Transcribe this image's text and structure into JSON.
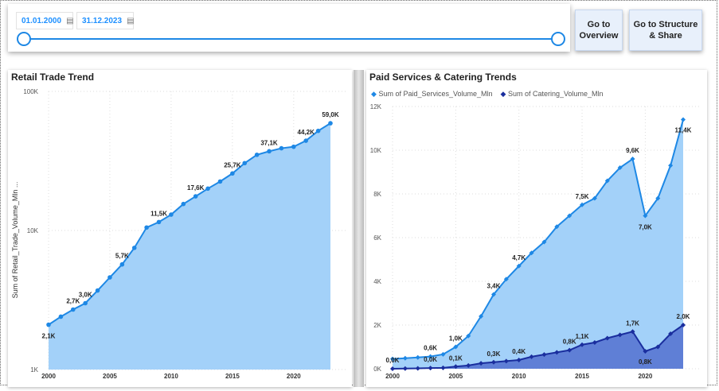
{
  "filter": {
    "start_date": "01.01.2000",
    "end_date": "31.12.2023",
    "calendar_glyph": "▤"
  },
  "buttons": {
    "overview": "Go to Overview",
    "structure": "Go to Structure & Share"
  },
  "colors": {
    "accent": "#1e88e5",
    "area_light": "#a3d1f9",
    "dark_series": "#1a2e9e",
    "dark_area": "#5f7fd6"
  },
  "chart_data": [
    {
      "type": "area",
      "title": "Retail Trade Trend",
      "ylabel": "Sum of Retail_Trade_Volume_Mln ...",
      "xlabel": "",
      "yscale": "log",
      "ylim": [
        1000,
        100000
      ],
      "y_ticks": [
        {
          "value": 1000,
          "label": "1K"
        },
        {
          "value": 10000,
          "label": "10K"
        },
        {
          "value": 100000,
          "label": "100K"
        }
      ],
      "x_ticks": [
        2000,
        2005,
        2010,
        2015,
        2020
      ],
      "x": [
        2000,
        2001,
        2002,
        2003,
        2004,
        2005,
        2006,
        2007,
        2008,
        2009,
        2010,
        2011,
        2012,
        2013,
        2014,
        2015,
        2016,
        2017,
        2018,
        2019,
        2020,
        2021,
        2022,
        2023
      ],
      "series": [
        {
          "values": [
            2100,
            2400,
            2700,
            3000,
            3700,
            4600,
            5700,
            7500,
            10500,
            11500,
            13000,
            15500,
            17600,
            20000,
            22500,
            25700,
            30500,
            35000,
            37100,
            39000,
            40000,
            44200,
            52000,
            59000
          ],
          "labels": [
            "2,1K",
            "",
            "2,7K",
            "3,0K",
            "",
            "",
            "5,7K",
            "",
            "",
            "11,5K",
            "",
            "",
            "17,6K",
            "",
            "",
            "25,7K",
            "",
            "",
            "37,1K",
            "",
            "",
            "44,2K",
            "",
            "59,0K"
          ]
        }
      ]
    },
    {
      "type": "area",
      "title": "Paid Services & Catering Trends",
      "xlabel": "",
      "ylabel": "",
      "ylim": [
        0,
        12000
      ],
      "y_ticks": [
        {
          "value": 0,
          "label": "0K"
        },
        {
          "value": 2000,
          "label": "2K"
        },
        {
          "value": 4000,
          "label": "4K"
        },
        {
          "value": 6000,
          "label": "6K"
        },
        {
          "value": 8000,
          "label": "8K"
        },
        {
          "value": 10000,
          "label": "10K"
        },
        {
          "value": 12000,
          "label": "12K"
        }
      ],
      "x_ticks": [
        2000,
        2005,
        2010,
        2015,
        2020
      ],
      "legend_position": "top-left",
      "x": [
        2000,
        2001,
        2002,
        2003,
        2004,
        2005,
        2006,
        2007,
        2008,
        2009,
        2010,
        2011,
        2012,
        2013,
        2014,
        2015,
        2016,
        2017,
        2018,
        2019,
        2020,
        2021,
        2022,
        2023
      ],
      "series": [
        {
          "name": "Sum of Paid_Services_Volume_Mln",
          "color": "#1e88e5",
          "values": [
            450,
            480,
            520,
            560,
            660,
            1000,
            1500,
            2400,
            3400,
            4100,
            4700,
            5300,
            5800,
            6500,
            7000,
            7500,
            7800,
            8600,
            9200,
            9600,
            7000,
            7800,
            9300,
            11400
          ],
          "labels": [
            "",
            "",
            "",
            "0,6K",
            "",
            "1,0K",
            "",
            "",
            "3,4K",
            "",
            "4,7K",
            "",
            "",
            "",
            "",
            "7,5K",
            "",
            "",
            "",
            "9,6K",
            "7,0K",
            "",
            "",
            "11,4K"
          ]
        },
        {
          "name": "Sum of Catering_Volume_Mln",
          "color": "#1a2e9e",
          "values": [
            0,
            10,
            20,
            30,
            40,
            100,
            150,
            250,
            300,
            350,
            400,
            550,
            650,
            750,
            850,
            1100,
            1200,
            1400,
            1550,
            1700,
            800,
            1000,
            1600,
            2000
          ],
          "labels": [
            "0,0K",
            "",
            "",
            "0,0K",
            "",
            "0,1K",
            "",
            "",
            "0,3K",
            "",
            "0,4K",
            "",
            "",
            "",
            "0,8K",
            "1,1K",
            "",
            "",
            "",
            "1,7K",
            "0,8K",
            "",
            "",
            "2,0K"
          ]
        }
      ]
    }
  ]
}
